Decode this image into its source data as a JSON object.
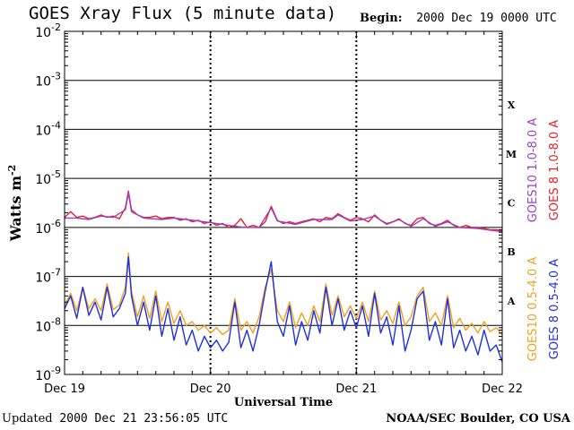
{
  "header": {
    "title": "GOES Xray Flux (5 minute data)",
    "begin_label": "Begin:",
    "begin_value": "2000 Dec 19 0000 UTC"
  },
  "footer": {
    "updated_label": "Updated",
    "updated_value": "2000 Dec 21 23:56:05 UTC",
    "credit": "NOAA/SEC Boulder, CO USA"
  },
  "chart_data": {
    "type": "line",
    "title": "GOES Xray Flux (5 minute data)",
    "xlabel": "Universal Time",
    "ylabel": "Watts m",
    "ylabel_sup": "-2",
    "y_scale": "log",
    "ylim": [
      1e-09,
      0.01
    ],
    "y_ticks": [
      {
        "value": 0.01,
        "base": "10",
        "exp": "-2"
      },
      {
        "value": 0.001,
        "base": "10",
        "exp": "-3"
      },
      {
        "value": 0.0001,
        "base": "10",
        "exp": "-4"
      },
      {
        "value": 1e-05,
        "base": "10",
        "exp": "-5"
      },
      {
        "value": 1e-06,
        "base": "10",
        "exp": "-6"
      },
      {
        "value": 1e-07,
        "base": "10",
        "exp": "-7"
      },
      {
        "value": 1e-08,
        "base": "10",
        "exp": "-8"
      },
      {
        "value": 1e-09,
        "base": "10",
        "exp": "-9"
      }
    ],
    "xlim_hours": [
      0,
      72
    ],
    "x_ticks": [
      {
        "hour": 0,
        "label": "Dec 19"
      },
      {
        "hour": 24,
        "label": "Dec 20"
      },
      {
        "hour": 48,
        "label": "Dec 21"
      },
      {
        "hour": 72,
        "label": "Dec 22"
      }
    ],
    "flare_classes": [
      {
        "label": "X",
        "low": 0.0001,
        "high": 0.001
      },
      {
        "label": "M",
        "low": 1e-05,
        "high": 0.0001
      },
      {
        "label": "C",
        "low": 1e-06,
        "high": 1e-05
      },
      {
        "label": "B",
        "low": 1e-07,
        "high": 1e-06
      },
      {
        "label": "A",
        "low": 1e-08,
        "high": 1e-07
      }
    ],
    "grid": "horizontal at each decade",
    "legend": [
      {
        "name": "GOES10 1.0-8.0 A",
        "color": "#9a3fc0"
      },
      {
        "name": "GOES 8 1.0-8.0 A",
        "color": "#e8202a"
      },
      {
        "name": "GOES10 0.5-4.0 A",
        "color": "#f0a020"
      },
      {
        "name": "GOES 8 0.5-4.0 A",
        "color": "#1f2fe0"
      }
    ],
    "series": [
      {
        "name": "GOES 8 1.0-8.0 A",
        "color": "#e8202a",
        "points": [
          [
            0,
            1.6e-06
          ],
          [
            1,
            2.1e-06
          ],
          [
            2,
            1.6e-06
          ],
          [
            3,
            1.7e-06
          ],
          [
            4,
            1.5e-06
          ],
          [
            5,
            1.6e-06
          ],
          [
            6,
            1.8e-06
          ],
          [
            7,
            1.6e-06
          ],
          [
            8,
            1.7e-06
          ],
          [
            9,
            1.5e-06
          ],
          [
            10,
            2.5e-06
          ],
          [
            10.5,
            5.5e-06
          ],
          [
            11,
            2.3e-06
          ],
          [
            12,
            1.8e-06
          ],
          [
            13,
            1.6e-06
          ],
          [
            14,
            1.6e-06
          ],
          [
            15,
            1.7e-06
          ],
          [
            16,
            1.5e-06
          ],
          [
            17,
            1.6e-06
          ],
          [
            18,
            1.6e-06
          ],
          [
            19,
            1.4e-06
          ],
          [
            20,
            1.5e-06
          ],
          [
            21,
            1.3e-06
          ],
          [
            22,
            1.4e-06
          ],
          [
            23,
            1.2e-06
          ],
          [
            24,
            1.3e-06
          ],
          [
            25,
            1.1e-06
          ],
          [
            26,
            1.2e-06
          ],
          [
            27,
            1e-06
          ],
          [
            28,
            1.1e-06
          ],
          [
            29,
            1.5e-06
          ],
          [
            30,
            1e-06
          ],
          [
            31,
            1.1e-06
          ],
          [
            32,
            1e-06
          ],
          [
            33,
            1.3e-06
          ],
          [
            34,
            2.7e-06
          ],
          [
            35,
            1.4e-06
          ],
          [
            36,
            1.2e-06
          ],
          [
            37,
            1.3e-06
          ],
          [
            38,
            1.2e-06
          ],
          [
            39,
            1.3e-06
          ],
          [
            40,
            1.4e-06
          ],
          [
            41,
            1.5e-06
          ],
          [
            42,
            1.3e-06
          ],
          [
            43,
            1.6e-06
          ],
          [
            44,
            1.5e-06
          ],
          [
            45,
            1.9e-06
          ],
          [
            46,
            1.6e-06
          ],
          [
            47,
            1.4e-06
          ],
          [
            48,
            1.6e-06
          ],
          [
            49,
            1.5e-06
          ],
          [
            50,
            1.3e-06
          ],
          [
            51,
            1.8e-06
          ],
          [
            52,
            1.4e-06
          ],
          [
            53,
            1.2e-06
          ],
          [
            54,
            1.3e-06
          ],
          [
            55,
            1.5e-06
          ],
          [
            56,
            1.2e-06
          ],
          [
            57,
            1.1e-06
          ],
          [
            58,
            1.5e-06
          ],
          [
            59,
            1.6e-06
          ],
          [
            60,
            1.2e-06
          ],
          [
            61,
            1.1e-06
          ],
          [
            62,
            1.2e-06
          ],
          [
            63,
            1.4e-06
          ],
          [
            64,
            1.1e-06
          ],
          [
            65,
            1e-06
          ],
          [
            66,
            1.1e-06
          ],
          [
            67,
            1e-06
          ],
          [
            68,
            1e-06
          ],
          [
            69,
            9.5e-07
          ],
          [
            70,
            9e-07
          ],
          [
            71,
            9e-07
          ],
          [
            72,
            8.5e-07
          ]
        ]
      },
      {
        "name": "GOES10 1.0-8.0 A",
        "color": "#9a3fc0",
        "points": [
          [
            0,
            1.55e-06
          ],
          [
            2,
            1.55e-06
          ],
          [
            4,
            1.45e-06
          ],
          [
            6,
            1.7e-06
          ],
          [
            8,
            1.6e-06
          ],
          [
            10,
            2.3e-06
          ],
          [
            10.5,
            5e-06
          ],
          [
            11,
            2.1e-06
          ],
          [
            13,
            1.55e-06
          ],
          [
            16,
            1.45e-06
          ],
          [
            18,
            1.55e-06
          ],
          [
            20,
            1.45e-06
          ],
          [
            22,
            1.35e-06
          ],
          [
            24,
            1.25e-06
          ],
          [
            26,
            1.15e-06
          ],
          [
            28,
            1.05e-06
          ],
          [
            30,
            1e-06
          ],
          [
            32,
            1e-06
          ],
          [
            34,
            2.5e-06
          ],
          [
            35,
            1.35e-06
          ],
          [
            38,
            1.15e-06
          ],
          [
            41,
            1.45e-06
          ],
          [
            44,
            1.45e-06
          ],
          [
            45,
            1.8e-06
          ],
          [
            47,
            1.35e-06
          ],
          [
            49,
            1.45e-06
          ],
          [
            51,
            1.7e-06
          ],
          [
            53,
            1.15e-06
          ],
          [
            55,
            1.45e-06
          ],
          [
            57,
            1.05e-06
          ],
          [
            59,
            1.5e-06
          ],
          [
            61,
            1.05e-06
          ],
          [
            63,
            1.3e-06
          ],
          [
            65,
            1e-06
          ],
          [
            68,
            9.5e-07
          ],
          [
            70,
            8.8e-07
          ],
          [
            72,
            8.2e-07
          ]
        ]
      },
      {
        "name": "GOES10 0.5-4.0 A",
        "color": "#f0a020",
        "points": [
          [
            0,
            2.6e-08
          ],
          [
            1,
            4.5e-08
          ],
          [
            2,
            2e-08
          ],
          [
            3,
            6e-08
          ],
          [
            4,
            2.2e-08
          ],
          [
            5,
            3.5e-08
          ],
          [
            6,
            2e-08
          ],
          [
            7,
            7e-08
          ],
          [
            8,
            2.1e-08
          ],
          [
            9,
            2.6e-08
          ],
          [
            10,
            6e-08
          ],
          [
            10.5,
            3e-07
          ],
          [
            11,
            5e-08
          ],
          [
            12,
            1.5e-08
          ],
          [
            13,
            4e-08
          ],
          [
            14,
            1.4e-08
          ],
          [
            15,
            5e-08
          ],
          [
            16,
            1.2e-08
          ],
          [
            17,
            3e-08
          ],
          [
            18,
            1.1e-08
          ],
          [
            19,
            2e-08
          ],
          [
            20,
            1e-08
          ],
          [
            21,
            1.2e-08
          ],
          [
            22,
            8e-09
          ],
          [
            23,
            1e-08
          ],
          [
            24,
            7e-09
          ],
          [
            25,
            9e-09
          ],
          [
            26,
            6.5e-09
          ],
          [
            27,
            8e-09
          ],
          [
            28,
            3.5e-08
          ],
          [
            29,
            8e-09
          ],
          [
            30,
            1.2e-08
          ],
          [
            31,
            7e-09
          ],
          [
            32,
            1.5e-08
          ],
          [
            33,
            6e-08
          ],
          [
            34,
            1.4e-07
          ],
          [
            35,
            2e-08
          ],
          [
            36,
            1.2e-08
          ],
          [
            37,
            3e-08
          ],
          [
            38,
            9e-09
          ],
          [
            39,
            1.8e-08
          ],
          [
            40,
            1e-08
          ],
          [
            41,
            2.5e-08
          ],
          [
            42,
            1.2e-08
          ],
          [
            43,
            7e-08
          ],
          [
            44,
            1.6e-08
          ],
          [
            45,
            4e-08
          ],
          [
            46,
            1.5e-08
          ],
          [
            47,
            2.5e-08
          ],
          [
            48,
            1.4e-08
          ],
          [
            49,
            3e-08
          ],
          [
            50,
            1.2e-08
          ],
          [
            51,
            5e-08
          ],
          [
            52,
            1.3e-08
          ],
          [
            53,
            2e-08
          ],
          [
            54,
            1.1e-08
          ],
          [
            55,
            3e-08
          ],
          [
            56,
            1e-08
          ],
          [
            57,
            1.5e-08
          ],
          [
            58,
            4e-08
          ],
          [
            59,
            6e-08
          ],
          [
            60,
            1.2e-08
          ],
          [
            61,
            1.8e-08
          ],
          [
            62,
            1e-08
          ],
          [
            63,
            4e-08
          ],
          [
            64,
            9e-09
          ],
          [
            65,
            1.4e-08
          ],
          [
            66,
            8e-09
          ],
          [
            67,
            1.1e-08
          ],
          [
            68,
            7e-09
          ],
          [
            69,
            1.2e-08
          ],
          [
            70,
            7.5e-09
          ],
          [
            71,
            9e-09
          ],
          [
            72,
            6.5e-09
          ]
        ]
      },
      {
        "name": "GOES 8 0.5-4.0 A",
        "color": "#1f2fe0",
        "points": [
          [
            0,
            2.2e-08
          ],
          [
            1,
            4e-08
          ],
          [
            2,
            1.4e-08
          ],
          [
            3,
            6e-08
          ],
          [
            4,
            1.6e-08
          ],
          [
            5,
            3e-08
          ],
          [
            6,
            1.3e-08
          ],
          [
            7,
            6e-08
          ],
          [
            8,
            1.5e-08
          ],
          [
            9,
            2.2e-08
          ],
          [
            10,
            4.5e-08
          ],
          [
            10.5,
            2.5e-07
          ],
          [
            11,
            4e-08
          ],
          [
            12,
            1e-08
          ],
          [
            13,
            3e-08
          ],
          [
            14,
            8e-09
          ],
          [
            15,
            4e-08
          ],
          [
            16,
            6e-09
          ],
          [
            17,
            2.2e-08
          ],
          [
            18,
            5e-09
          ],
          [
            19,
            1.5e-08
          ],
          [
            20,
            4e-09
          ],
          [
            21,
            8e-09
          ],
          [
            22,
            3e-09
          ],
          [
            23,
            6e-09
          ],
          [
            24,
            3.5e-09
          ],
          [
            25,
            5e-09
          ],
          [
            26,
            3e-09
          ],
          [
            27,
            4.5e-09
          ],
          [
            28,
            3e-08
          ],
          [
            29,
            3.5e-09
          ],
          [
            30,
            8e-09
          ],
          [
            31,
            3e-09
          ],
          [
            32,
            1e-08
          ],
          [
            33,
            5e-08
          ],
          [
            34,
            2e-07
          ],
          [
            35,
            1.2e-08
          ],
          [
            36,
            6e-09
          ],
          [
            37,
            2.5e-08
          ],
          [
            38,
            4e-09
          ],
          [
            39,
            1.2e-08
          ],
          [
            40,
            5e-09
          ],
          [
            41,
            2e-08
          ],
          [
            42,
            7e-09
          ],
          [
            43,
            6e-08
          ],
          [
            44,
            1e-08
          ],
          [
            45,
            3.5e-08
          ],
          [
            46,
            8e-09
          ],
          [
            47,
            2e-08
          ],
          [
            48,
            9e-09
          ],
          [
            49,
            2.5e-08
          ],
          [
            50,
            6e-09
          ],
          [
            51,
            4.5e-08
          ],
          [
            52,
            7e-09
          ],
          [
            53,
            1.5e-08
          ],
          [
            54,
            4e-09
          ],
          [
            55,
            2.5e-08
          ],
          [
            56,
            3e-09
          ],
          [
            57,
            8e-09
          ],
          [
            58,
            3.5e-08
          ],
          [
            59,
            5e-08
          ],
          [
            60,
            5e-09
          ],
          [
            61,
            1.2e-08
          ],
          [
            62,
            4e-09
          ],
          [
            63,
            3.5e-08
          ],
          [
            64,
            3.5e-09
          ],
          [
            65,
            8e-09
          ],
          [
            66,
            3e-09
          ],
          [
            67,
            6e-09
          ],
          [
            68,
            2.5e-09
          ],
          [
            69,
            8e-09
          ],
          [
            70,
            3e-09
          ],
          [
            71,
            4e-09
          ],
          [
            72,
            1.8e-09
          ]
        ]
      }
    ]
  }
}
